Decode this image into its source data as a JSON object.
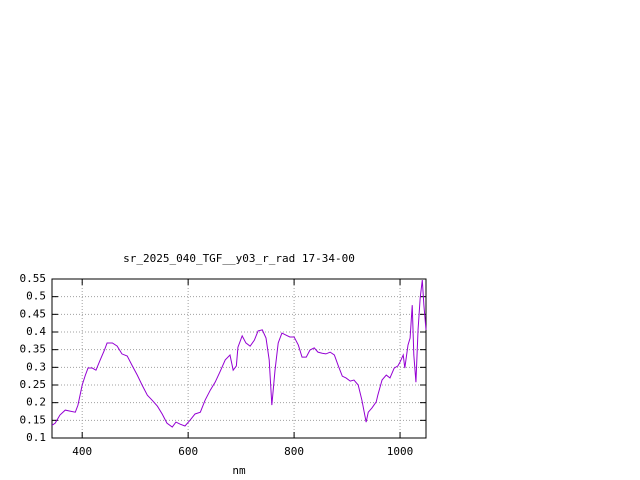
{
  "chart_data": {
    "type": "line",
    "title": "sr_2025_040_TGF__y03_r_rad 17-34-00",
    "x_label": "nm",
    "xlim": [
      343,
      1049
    ],
    "ylim": [
      0.1,
      0.55
    ],
    "xticks": [
      400,
      600,
      800,
      1000
    ],
    "yticks": [
      0.1,
      0.15,
      0.2,
      0.25,
      0.3,
      0.35,
      0.4,
      0.45,
      0.5,
      0.55
    ],
    "grid": true,
    "series": [
      {
        "color": "#9400d3",
        "x": [
          343,
          349,
          358,
          368,
          377,
          387,
          392,
          400,
          406,
          411,
          419,
          426,
          434,
          442,
          447,
          457,
          466,
          475,
          485,
          494,
          504,
          513,
          523,
          532,
          542,
          551,
          560,
          570,
          577,
          585,
          594,
          604,
          613,
          623,
          632,
          642,
          651,
          660,
          670,
          679,
          685,
          691,
          694,
          702,
          709,
          717,
          725,
          732,
          740,
          747,
          753,
          758,
          764,
          770,
          777,
          785,
          792,
          800,
          808,
          815,
          823,
          830,
          838,
          845,
          853,
          860,
          868,
          876,
          883,
          891,
          898,
          906,
          913,
          921,
          928,
          936,
          940,
          947,
          955,
          958,
          966,
          974,
          981,
          989,
          996,
          1000,
          1006,
          1009,
          1015,
          1019,
          1023,
          1026,
          1030,
          1034,
          1038,
          1042,
          1045,
          1049
        ],
        "values": [
          0.136,
          0.142,
          0.165,
          0.179,
          0.176,
          0.173,
          0.193,
          0.25,
          0.278,
          0.298,
          0.298,
          0.292,
          0.321,
          0.349,
          0.369,
          0.369,
          0.36,
          0.338,
          0.332,
          0.306,
          0.278,
          0.25,
          0.221,
          0.207,
          0.19,
          0.168,
          0.142,
          0.131,
          0.145,
          0.139,
          0.134,
          0.151,
          0.168,
          0.173,
          0.207,
          0.236,
          0.258,
          0.287,
          0.321,
          0.335,
          0.292,
          0.304,
          0.357,
          0.389,
          0.369,
          0.36,
          0.377,
          0.403,
          0.406,
          0.383,
          0.321,
          0.193,
          0.292,
          0.369,
          0.397,
          0.391,
          0.386,
          0.386,
          0.363,
          0.329,
          0.329,
          0.349,
          0.355,
          0.343,
          0.34,
          0.338,
          0.343,
          0.335,
          0.306,
          0.275,
          0.27,
          0.261,
          0.264,
          0.25,
          0.207,
          0.145,
          0.173,
          0.185,
          0.202,
          0.221,
          0.264,
          0.278,
          0.27,
          0.298,
          0.304,
          0.315,
          0.335,
          0.298,
          0.363,
          0.383,
          0.476,
          0.335,
          0.258,
          0.406,
          0.496,
          0.547,
          0.476,
          0.406
        ]
      }
    ]
  }
}
